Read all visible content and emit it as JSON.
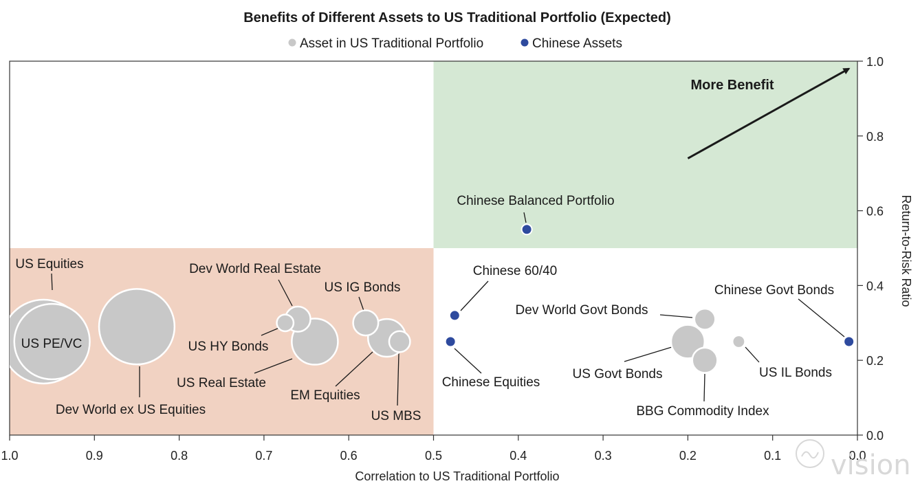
{
  "chart_data": {
    "type": "scatter",
    "title": "Benefits of Different Assets to US Traditional Portfolio (Expected)",
    "xlabel": "Correlation to US Traditional Portfolio",
    "ylabel": "Return-to-Risk Ratio",
    "xlim": [
      1.0,
      0.0
    ],
    "ylim": [
      0.0,
      1.0
    ],
    "x_ticks": [
      "1.0",
      "0.9",
      "0.8",
      "0.7",
      "0.6",
      "0.5",
      "0.4",
      "0.3",
      "0.2",
      "0.1",
      "0.0"
    ],
    "y_ticks": [
      "0.0",
      "0.2",
      "0.4",
      "0.6",
      "0.8",
      "1.0"
    ],
    "legend": [
      {
        "label": "Asset in US Traditional Portfolio",
        "color": "#c8c8c8"
      },
      {
        "label": "Chinese Assets",
        "color": "#2e4a9e"
      }
    ],
    "regions": [
      {
        "name": "more-benefit-zone",
        "x_range": [
          0.5,
          0.0
        ],
        "y_range": [
          0.5,
          1.0
        ],
        "color": "#d5e8d4"
      },
      {
        "name": "less-benefit-zone",
        "x_range": [
          1.0,
          0.5
        ],
        "y_range": [
          0.0,
          0.5
        ],
        "color": "#f1d2c2"
      }
    ],
    "annotation": {
      "text": "More Benefit",
      "arrow_from": [
        0.2,
        0.74
      ],
      "arrow_to": [
        0.01,
        0.98
      ]
    },
    "series": [
      {
        "name": "Asset in US Traditional Portfolio",
        "color": "#c8c8c8",
        "points": [
          {
            "label": "US Equities",
            "x": 0.96,
            "y": 0.25,
            "size": 10
          },
          {
            "label": "US PE/VC",
            "x": 0.95,
            "y": 0.25,
            "size": 9,
            "label_inside": true
          },
          {
            "label": "Dev World ex US Equities",
            "x": 0.85,
            "y": 0.29,
            "size": 9
          },
          {
            "label": "Dev World Real Estate",
            "x": 0.66,
            "y": 0.31,
            "size": 3
          },
          {
            "label": "US HY Bonds",
            "x": 0.675,
            "y": 0.3,
            "size": 2
          },
          {
            "label": "US Real Estate",
            "x": 0.64,
            "y": 0.25,
            "size": 5.5
          },
          {
            "label": "US IG Bonds",
            "x": 0.58,
            "y": 0.3,
            "size": 3
          },
          {
            "label": "EM Equities",
            "x": 0.555,
            "y": 0.26,
            "size": 4.5
          },
          {
            "label": "US MBS",
            "x": 0.54,
            "y": 0.25,
            "size": 2.5
          },
          {
            "label": "Dev World Govt Bonds",
            "x": 0.18,
            "y": 0.31,
            "size": 2.5
          },
          {
            "label": "US Govt Bonds",
            "x": 0.2,
            "y": 0.25,
            "size": 4
          },
          {
            "label": "BBG Commodity Index",
            "x": 0.18,
            "y": 0.2,
            "size": 3
          },
          {
            "label": "US IL Bonds",
            "x": 0.14,
            "y": 0.25,
            "size": 1.5
          }
        ]
      },
      {
        "name": "Chinese Assets",
        "color": "#2e4a9e",
        "points": [
          {
            "label": "Chinese Balanced Portfolio",
            "x": 0.39,
            "y": 0.55,
            "size": 1
          },
          {
            "label": "Chinese 60/40",
            "x": 0.475,
            "y": 0.32,
            "size": 1
          },
          {
            "label": "Chinese Equities",
            "x": 0.48,
            "y": 0.25,
            "size": 1
          },
          {
            "label": "Chinese Govt Bonds",
            "x": 0.01,
            "y": 0.25,
            "size": 1
          }
        ]
      }
    ]
  },
  "watermark": {
    "text": "vision"
  }
}
